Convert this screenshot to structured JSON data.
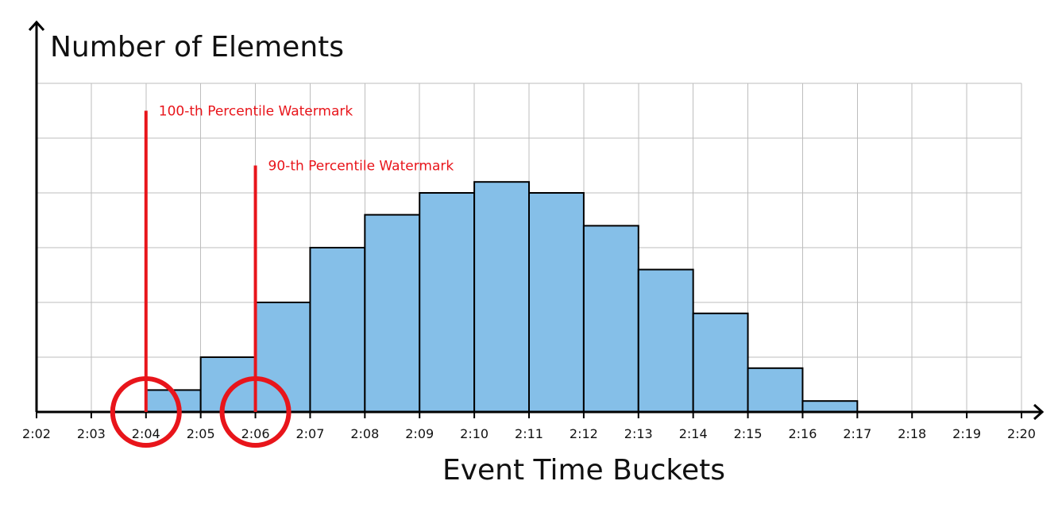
{
  "chart_data": {
    "type": "bar",
    "ylabel": "Number of Elements",
    "xlabel": "Event Time Buckets",
    "x_ticks": [
      "2:02",
      "2:03",
      "2:04",
      "2:05",
      "2:06",
      "2:07",
      "2:08",
      "2:09",
      "2:10",
      "2:11",
      "2:12",
      "2:13",
      "2:14",
      "2:15",
      "2:16",
      "2:17",
      "2:18",
      "2:19",
      "2:20"
    ],
    "bars": [
      {
        "start": "2:04",
        "end": "2:05",
        "value": 0.4
      },
      {
        "start": "2:05",
        "end": "2:06",
        "value": 1.0
      },
      {
        "start": "2:06",
        "end": "2:07",
        "value": 2.0
      },
      {
        "start": "2:07",
        "end": "2:08",
        "value": 3.0
      },
      {
        "start": "2:08",
        "end": "2:09",
        "value": 3.6
      },
      {
        "start": "2:09",
        "end": "2:10",
        "value": 4.0
      },
      {
        "start": "2:10",
        "end": "2:11",
        "value": 4.2
      },
      {
        "start": "2:11",
        "end": "2:12",
        "value": 4.0
      },
      {
        "start": "2:12",
        "end": "2:13",
        "value": 3.4
      },
      {
        "start": "2:13",
        "end": "2:14",
        "value": 2.6
      },
      {
        "start": "2:14",
        "end": "2:15",
        "value": 1.8
      },
      {
        "start": "2:15",
        "end": "2:16",
        "value": 0.8
      },
      {
        "start": "2:16",
        "end": "2:17",
        "value": 0.2
      }
    ],
    "ylim": [
      0,
      6
    ],
    "grid": true,
    "y_tick_labels": false,
    "annotations": [
      {
        "label": "100-th Percentile Watermark",
        "x": "2:04",
        "top": 5.5
      },
      {
        "label": "90-th Percentile Watermark",
        "x": "2:06",
        "top": 4.5
      }
    ],
    "colors": {
      "bar_fill": "#85bfe8",
      "bar_edge": "#000000",
      "watermark": "#e8151b",
      "grid": "#bdbdbd"
    }
  }
}
